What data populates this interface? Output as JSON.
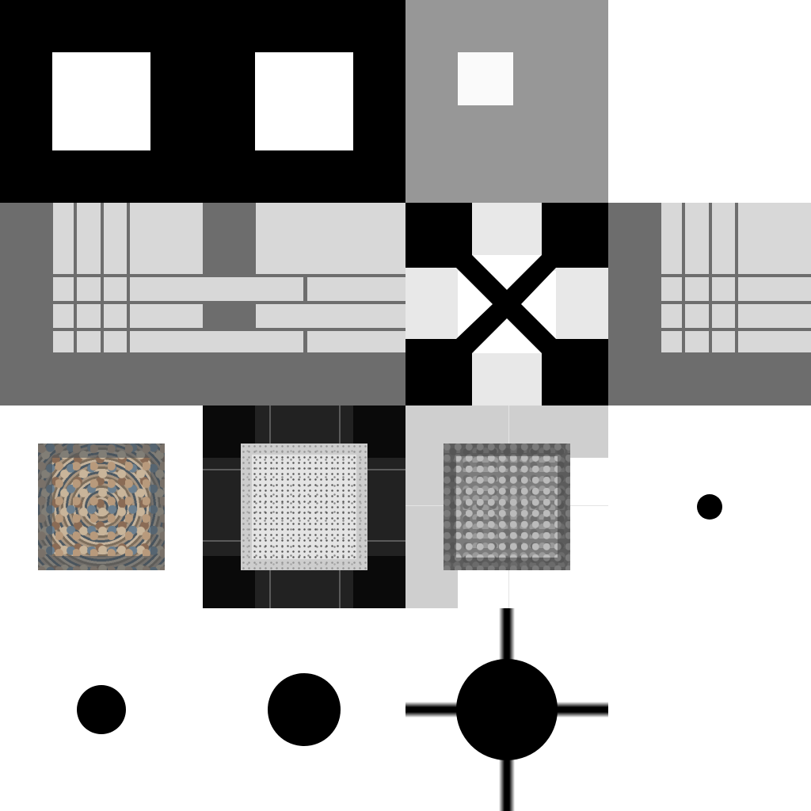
{
  "sheet": {
    "title": "",
    "tiles": [
      "two-white-squares-on-black",
      "light-square-on-grey",
      "blank-white",
      "grid-pattern",
      "x-pattern",
      "grid-pattern-right",
      "colored-pebble-texture",
      "speckled-texture-on-dark-grid",
      "grey-pebble-texture-on-light-grid",
      "small-black-dot",
      "medium-black-dot",
      "large-black-dot",
      "black-disc-with-crosshair",
      "blank-white"
    ]
  },
  "colors": {
    "black": "#000000",
    "grey": "#979797",
    "light": "#fafafa",
    "grid_bg": "#6d6d6d",
    "grid_cell": "#d8d8d8",
    "x_light": "#e8e8e8",
    "dark_panel": "#222222",
    "light_panel": "#cfcfcf"
  }
}
